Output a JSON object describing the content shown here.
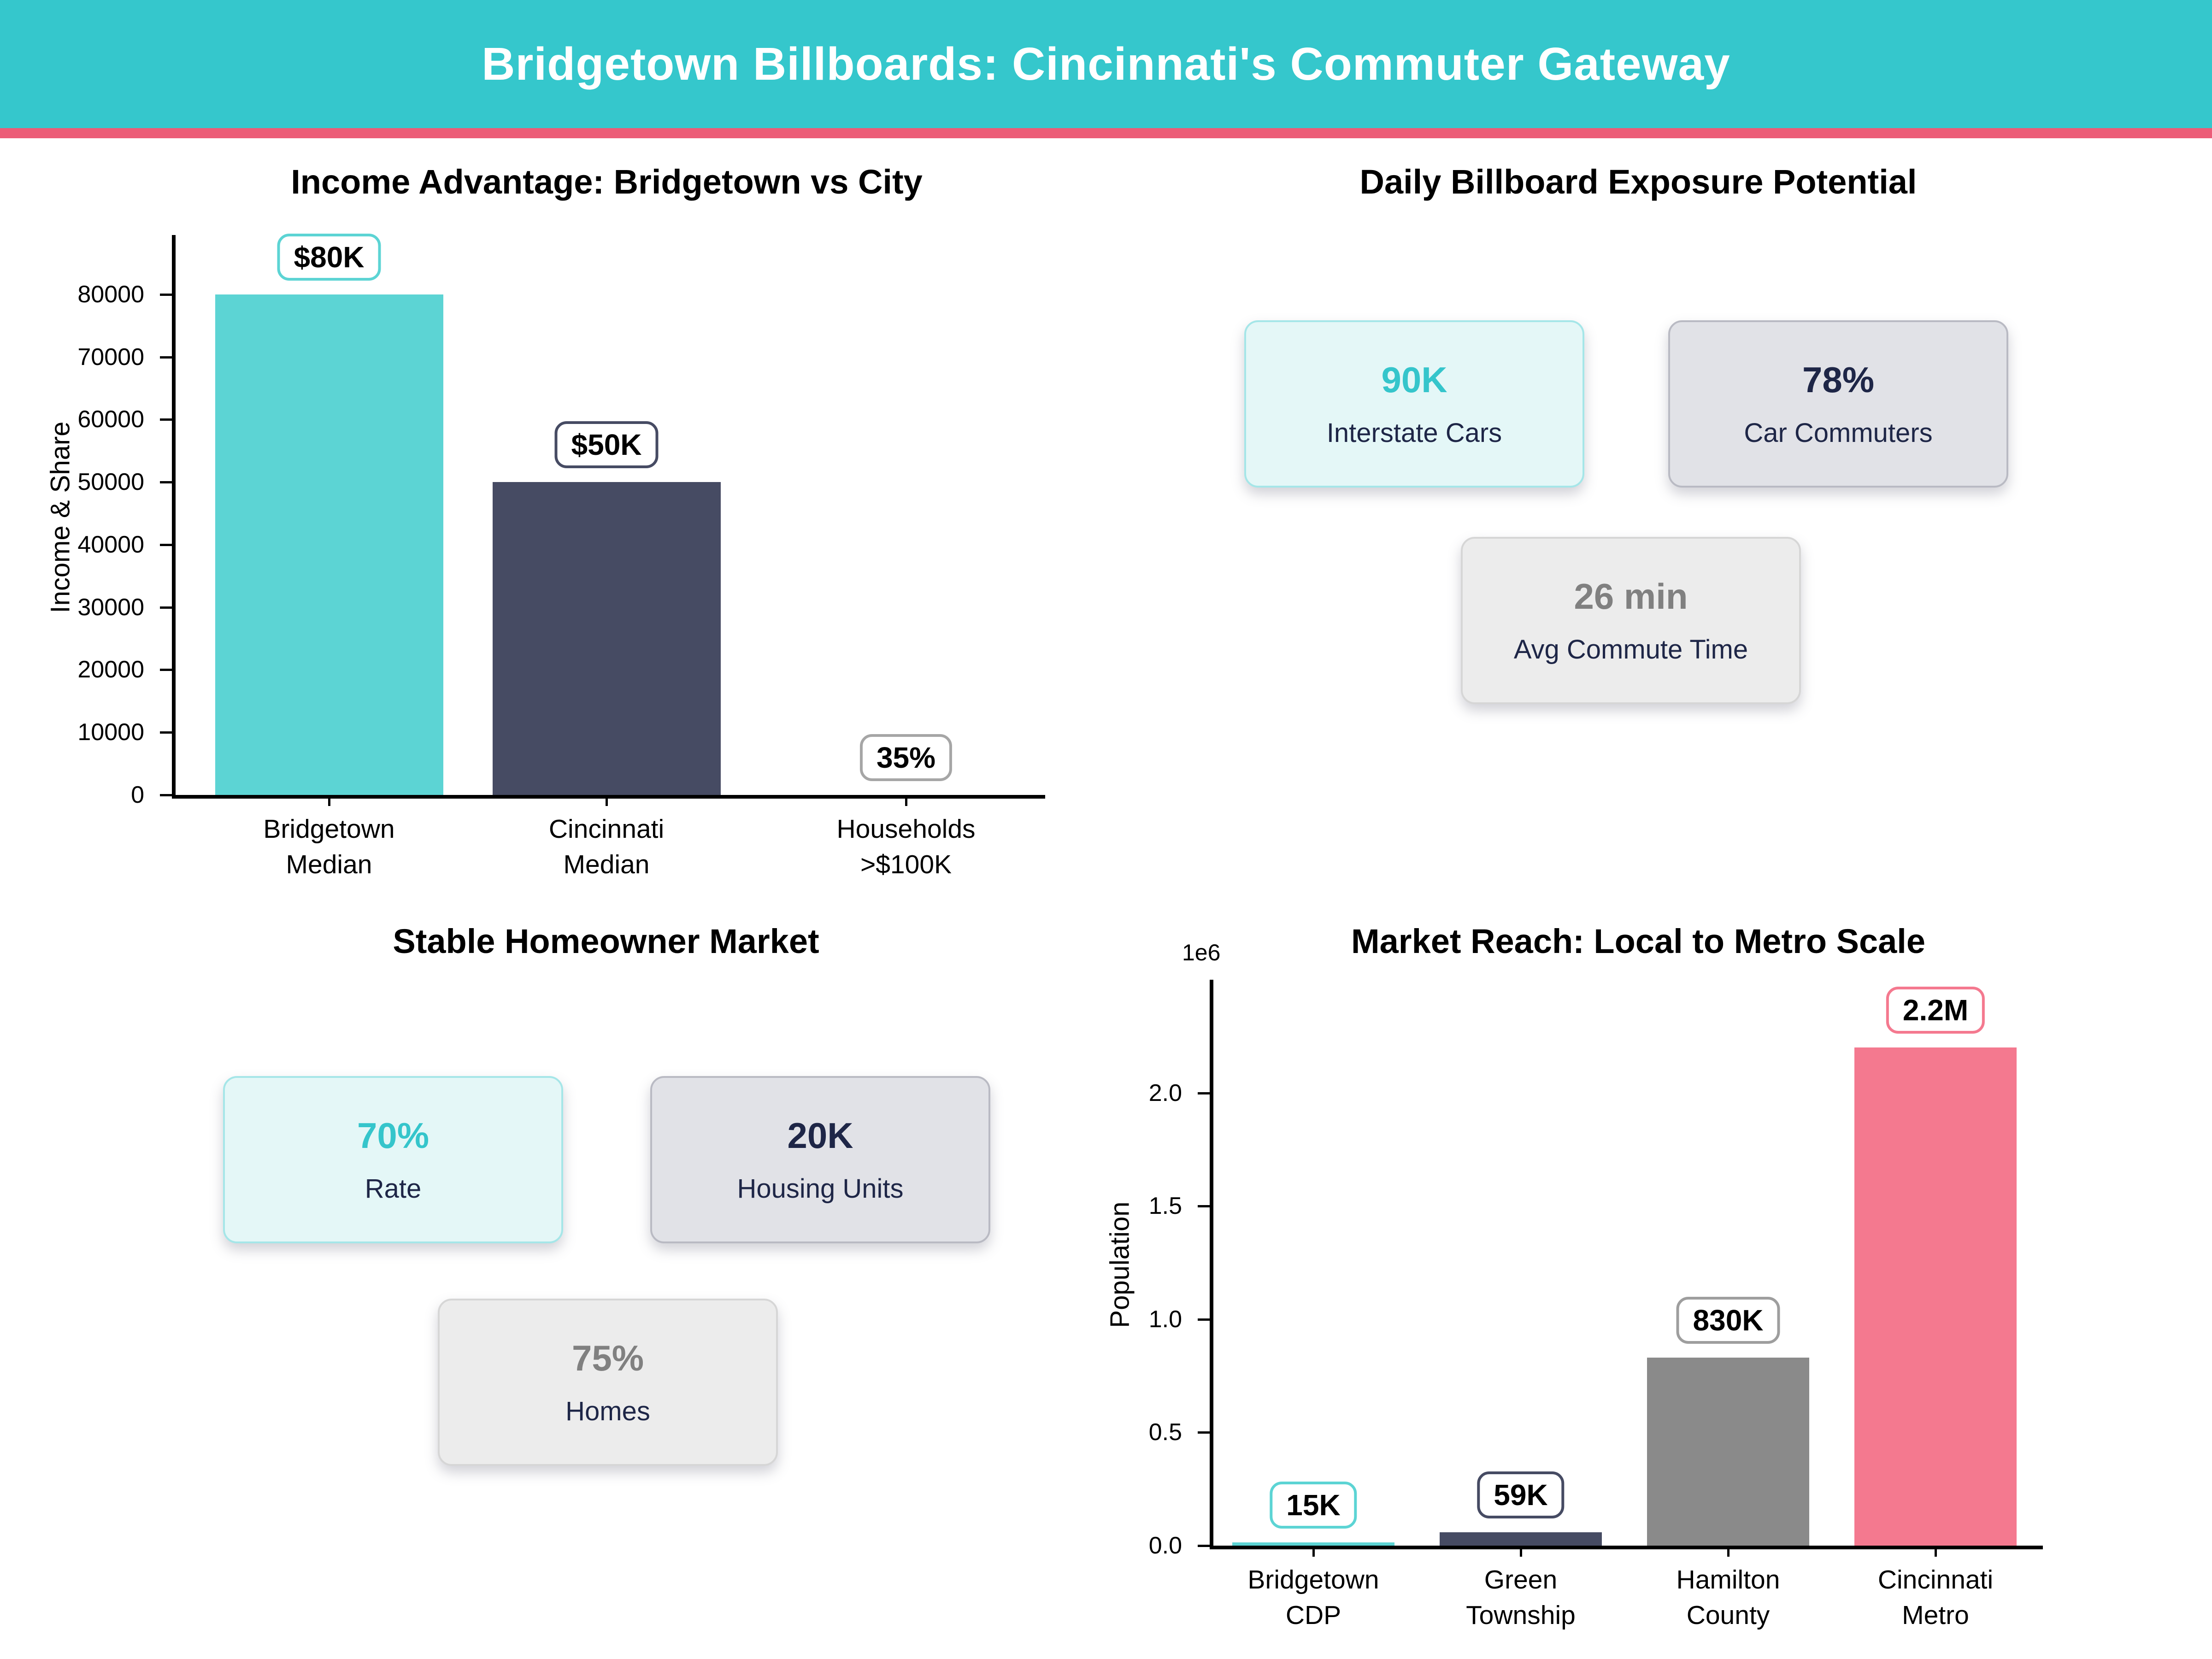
{
  "header": {
    "title": "Bridgetown Billboards: Cincinnati's Commuter Gateway",
    "bg_color": "#35c7cc",
    "stripe_color": "#ec5c77"
  },
  "chart_data": [
    {
      "type": "bar",
      "panel": "top-left",
      "title": "Income Advantage: Bridgetown vs City",
      "xlabel": "",
      "ylabel": "Income & Share",
      "categories": [
        [
          "Bridgetown",
          "Median"
        ],
        [
          "Cincinnati",
          "Median"
        ],
        [
          "Households",
          ">$100K"
        ]
      ],
      "values": [
        80000,
        50000,
        35
      ],
      "value_labels": [
        "$80K",
        "$50K",
        "35%"
      ],
      "bar_colors": [
        "#5cd4d4",
        "#464b63",
        "#5cd4d4"
      ],
      "label_border_colors": [
        "#5cd4d4",
        "#464b63",
        "#a6a6a6"
      ],
      "yticks": [
        0,
        10000,
        20000,
        30000,
        40000,
        50000,
        60000,
        70000,
        80000
      ],
      "ytick_labels": [
        "0",
        "10000",
        "20000",
        "30000",
        "40000",
        "50000",
        "60000",
        "70000",
        "80000"
      ],
      "ylim": [
        0,
        89500
      ],
      "grid": false,
      "legend": false
    },
    {
      "type": "bar",
      "panel": "bottom-right",
      "title": "Market Reach: Local to Metro Scale",
      "xlabel": "",
      "ylabel": "Population",
      "axis_offset_label": "1e6",
      "categories": [
        [
          "Bridgetown",
          "CDP"
        ],
        [
          "Green",
          "Township"
        ],
        [
          "Hamilton",
          "County"
        ],
        [
          "Cincinnati",
          "Metro"
        ]
      ],
      "values": [
        15000,
        59000,
        830000,
        2200000
      ],
      "value_labels": [
        "15K",
        "59K",
        "830K",
        "2.2M"
      ],
      "bar_colors": [
        "#5cd4d4",
        "#464b63",
        "#8a8a8a",
        "#f4798f"
      ],
      "label_border_colors": [
        "#5cd4d4",
        "#464b63",
        "#9e9e9e",
        "#f4798f"
      ],
      "yticks": [
        0,
        500000,
        1000000,
        1500000,
        2000000
      ],
      "ytick_labels": [
        "0.0",
        "0.5",
        "1.0",
        "1.5",
        "2.0"
      ],
      "ylim": [
        0,
        2500000
      ],
      "grid": false,
      "legend": false
    }
  ],
  "panels": {
    "exposure": {
      "title": "Daily Billboard Exposure Potential",
      "cards": [
        {
          "value": "90K",
          "label": "Interstate Cars",
          "value_color": "#35c5cb",
          "bg_color": "#e4f7f7",
          "border_color": "#a5e6e8"
        },
        {
          "value": "78%",
          "label": "Car Commuters",
          "value_color": "#1e2647",
          "bg_color": "#e1e2e7",
          "border_color": "#b9bac3"
        },
        {
          "value": "26 min",
          "label": "Avg Commute Time",
          "value_color": "#808080",
          "bg_color": "#ececec",
          "border_color": "#d6d6d6"
        }
      ]
    },
    "homeowner": {
      "title": "Stable Homeowner Market",
      "cards": [
        {
          "value": "70%",
          "label": "Rate",
          "value_color": "#35c5cb",
          "bg_color": "#e4f7f7",
          "border_color": "#a5e6e8"
        },
        {
          "value": "20K",
          "label": "Housing Units",
          "value_color": "#1e2647",
          "bg_color": "#e1e2e7",
          "border_color": "#b9bac3"
        },
        {
          "value": "75%",
          "label": "Homes",
          "value_color": "#808080",
          "bg_color": "#ececec",
          "border_color": "#d6d6d6"
        }
      ]
    }
  }
}
